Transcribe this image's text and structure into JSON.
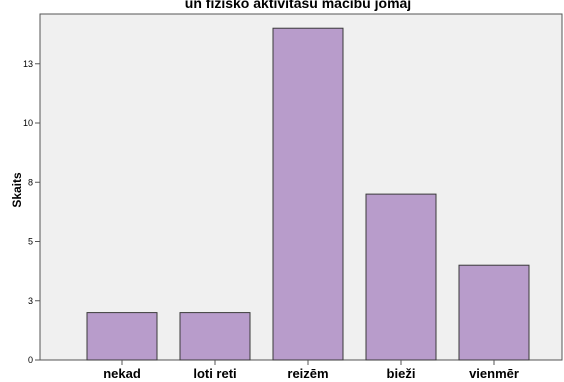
{
  "chart_data": {
    "type": "bar",
    "title": "un fiziskō aktivitasū mācību jomaj",
    "xlabel": "",
    "ylabel": "Skaits",
    "categories": [
      "nekad",
      "loti reti",
      "reizēm",
      "bieži",
      "vienmēr"
    ],
    "values": [
      2,
      2,
      14,
      7,
      4
    ],
    "yticks": [
      {
        "value": 0,
        "label": "0"
      },
      {
        "value": 2.5,
        "label": "3"
      },
      {
        "value": 5,
        "label": "5"
      },
      {
        "value": 7.5,
        "label": "8"
      },
      {
        "value": 10,
        "label": "10"
      },
      {
        "value": 12.5,
        "label": "13"
      }
    ],
    "ylim": [
      0,
      14.6
    ],
    "grid": false,
    "colors": {
      "bar_fill": "#b89ccb",
      "bar_stroke": "#3a3a3a",
      "plot_background": "#f0f0f0",
      "plot_border": "#555555"
    }
  }
}
